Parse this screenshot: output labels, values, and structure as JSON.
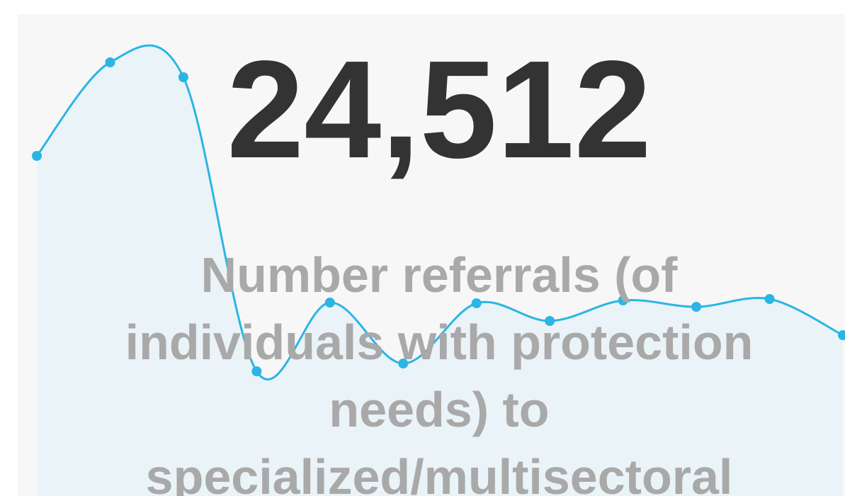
{
  "chart_data": {
    "type": "line",
    "kpi": "24,512",
    "subtitle_lines": [
      "Number referrals (of",
      "individuals with protection",
      "needs) to",
      "specialized/multisectoral"
    ],
    "values": [
      380,
      512,
      491,
      76,
      173,
      87,
      172,
      147,
      176,
      167,
      178,
      127
    ],
    "ylim": [
      0,
      600
    ],
    "color": "#2bb5e5",
    "area_color": "#eaf3f7"
  }
}
